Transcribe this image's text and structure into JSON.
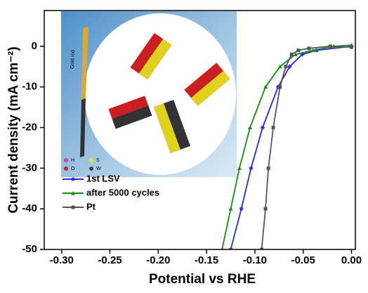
{
  "chart_data": {
    "type": "line",
    "x_label": "Potential vs RHE",
    "y_label": "Current density (mA cm⁻²)",
    "xlim": [
      -0.318,
      0.004
    ],
    "ylim": [
      -50,
      8.8
    ],
    "xticks": [
      {
        "value": -0.3,
        "label": "-0.30"
      },
      {
        "value": -0.25,
        "label": "-0.25"
      },
      {
        "value": -0.2,
        "label": "-0.20"
      },
      {
        "value": -0.15,
        "label": "-0.15"
      },
      {
        "value": -0.1,
        "label": "-0.10"
      },
      {
        "value": -0.05,
        "label": "-0.05"
      },
      {
        "value": 0,
        "label": "0.00"
      }
    ],
    "yticks": [
      0,
      -10,
      -20,
      -30,
      -40,
      -50
    ],
    "legend": "lower left",
    "series": [
      {
        "name": "1st LSV",
        "color": "#2b2bd6",
        "marker": "star",
        "x": [
          -0.125,
          -0.114,
          -0.104,
          -0.092,
          -0.076,
          -0.064,
          -0.051,
          -0.036,
          0
        ],
        "values": [
          -50,
          -40,
          -30,
          -20,
          -10,
          -5,
          -2,
          -1,
          0
        ]
      },
      {
        "name": "after 5000 cycles",
        "color": "#1a8a1a",
        "marker": "triangle",
        "x": [
          -0.134,
          -0.125,
          -0.116,
          -0.105,
          -0.089,
          -0.074,
          -0.058,
          -0.04,
          -0.018,
          0
        ],
        "values": [
          -50,
          -40,
          -30,
          -20,
          -10,
          -5,
          -2,
          -1,
          0,
          0.3
        ]
      },
      {
        "name": "Pt",
        "color": "#555555",
        "marker": "square",
        "x": [
          -0.093,
          -0.089,
          -0.086,
          -0.081,
          -0.074,
          -0.068,
          -0.062,
          -0.055,
          -0.044,
          -0.022,
          0
        ],
        "values": [
          -50,
          -40,
          -30,
          -20,
          -10,
          -5,
          -2,
          -1,
          -0.5,
          0,
          -0.2
        ]
      }
    ],
    "inset_labels": [
      "Gold rod",
      "H",
      "S",
      "O",
      "W"
    ]
  }
}
